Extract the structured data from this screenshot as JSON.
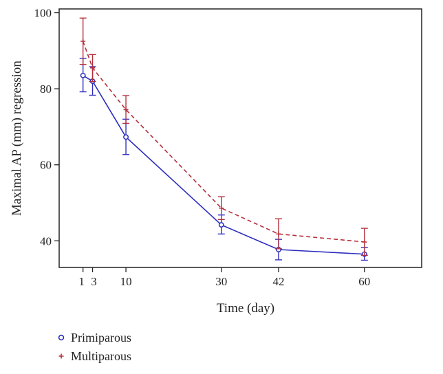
{
  "chart_data": {
    "type": "line",
    "title": "",
    "xlabel": "Time (day)",
    "ylabel": "Maximal AP (mm) regression",
    "xlim": [
      -4,
      72
    ],
    "ylim": [
      33,
      101
    ],
    "xticks": [
      1,
      3,
      10,
      30,
      42,
      60
    ],
    "yticks": [
      40,
      60,
      80,
      100
    ],
    "grid": false,
    "legend_position": "bottom-left",
    "series": [
      {
        "name": "Primiparous",
        "color": "#2d2dbf",
        "line_style": "solid",
        "marker": "circle",
        "x": [
          1,
          3,
          10,
          30,
          42,
          60
        ],
        "y": [
          83.5,
          82.0,
          67.3,
          44.2,
          37.7,
          36.5
        ],
        "err_low": [
          79.2,
          78.3,
          62.7,
          41.8,
          35.0,
          34.9
        ],
        "err_high": [
          88.0,
          85.8,
          72.0,
          46.8,
          40.4,
          38.2
        ]
      },
      {
        "name": "Multiparous",
        "color": "#b3303c",
        "line_style": "dashed",
        "marker": "plus",
        "x": [
          1,
          3,
          10,
          30,
          42,
          60
        ],
        "y": [
          92.5,
          85.5,
          74.5,
          48.6,
          41.8,
          39.7
        ],
        "err_low": [
          86.4,
          81.9,
          70.9,
          45.6,
          37.9,
          36.2
        ],
        "err_high": [
          98.6,
          89.0,
          78.2,
          51.6,
          45.8,
          43.3
        ]
      }
    ]
  }
}
